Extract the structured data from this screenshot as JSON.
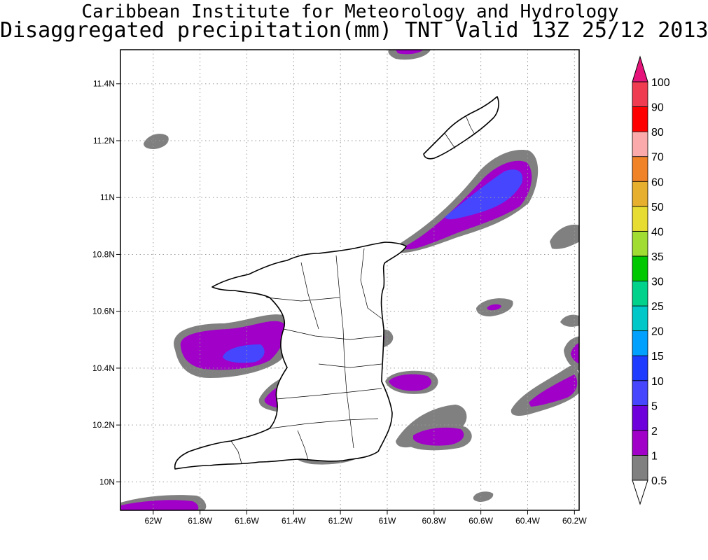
{
  "header": {
    "title_line1": "Caribbean Institute for Meteorology and Hydrology",
    "title_line2": "Disaggregated precipitation(mm) TNT Valid 13Z 25/12 2013"
  },
  "map": {
    "lon_ticks": [
      "62W",
      "61.8W",
      "61.6W",
      "61.4W",
      "61.2W",
      "61W",
      "60.8W",
      "60.6W",
      "60.4W",
      "60.2W"
    ],
    "lat_ticks": [
      "11.4N",
      "11.2N",
      "11N",
      "10.8N",
      "10.6N",
      "10.4N",
      "10.2N",
      "10N"
    ],
    "lon_values": [
      -62.0,
      -61.8,
      -61.6,
      -61.4,
      -61.2,
      -61.0,
      -60.8,
      -60.6,
      -60.4,
      -60.2
    ],
    "lat_values": [
      11.4,
      11.2,
      11.0,
      10.8,
      10.6,
      10.4,
      10.2,
      10.0
    ],
    "lon_range": [
      -62.14,
      -60.18
    ],
    "lat_range": [
      9.9,
      11.52
    ],
    "grid": "dotted"
  },
  "legend": {
    "levels": [
      {
        "label": "0.5",
        "color": "#ffffff"
      },
      {
        "label": "1",
        "color": "#808080"
      },
      {
        "label": "2",
        "color": "#a000c8"
      },
      {
        "label": "5",
        "color": "#6e00dc"
      },
      {
        "label": "10",
        "color": "#4646ff"
      },
      {
        "label": "15",
        "color": "#1e3cff"
      },
      {
        "label": "20",
        "color": "#00a0ff"
      },
      {
        "label": "25",
        "color": "#00c8c8"
      },
      {
        "label": "30",
        "color": "#00d28c"
      },
      {
        "label": "35",
        "color": "#00c800"
      },
      {
        "label": "40",
        "color": "#a0dc32"
      },
      {
        "label": "50",
        "color": "#e6dc32"
      },
      {
        "label": "60",
        "color": "#e6af2d"
      },
      {
        "label": "70",
        "color": "#f08228"
      },
      {
        "label": "80",
        "color": "#faaaaa"
      },
      {
        "label": "90",
        "color": "#ff0000"
      },
      {
        "label": "100",
        "color": "#f03c50"
      }
    ],
    "top_color": "#e6147a"
  },
  "palette": {
    "gray": "#808080",
    "purple": "#a000c8",
    "violet": "#6e00dc",
    "blue": "#4646ff"
  }
}
